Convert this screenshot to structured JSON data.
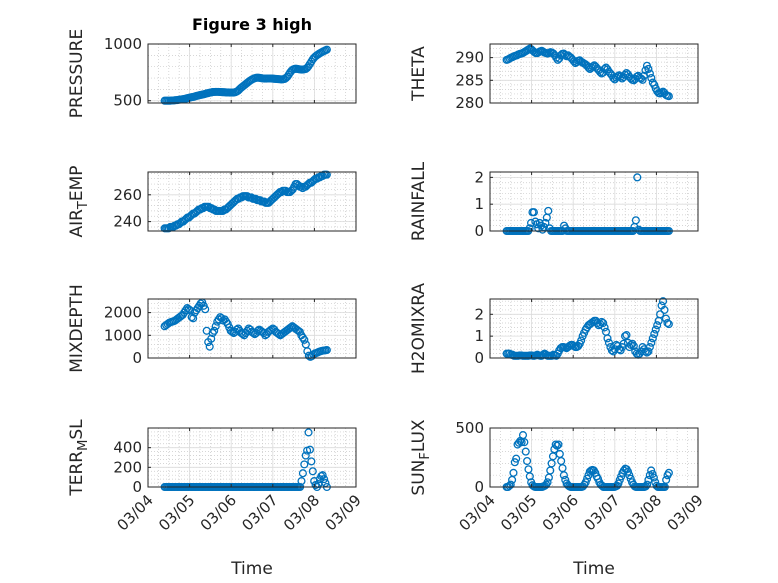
{
  "figure_title": "Figure 3 high",
  "marker_color": "#0072BD",
  "x_axis": {
    "label": "Time",
    "ticks": [
      "03/04",
      "03/05",
      "03/06",
      "03/07",
      "03/08",
      "03/09"
    ]
  },
  "chart_data": [
    {
      "type": "scatter",
      "title": "Figure 3 high",
      "ylabel": "PRESSURE",
      "ylim": [
        480,
        1000
      ],
      "yticks": [
        500,
        1000
      ],
      "grid": true,
      "series": [
        {
          "values": [
            500,
            500,
            500,
            500,
            500,
            502,
            502,
            504,
            505,
            506,
            508,
            510,
            512,
            514,
            516,
            518,
            522,
            525,
            528,
            531,
            533,
            536,
            540,
            543,
            546,
            550,
            552,
            555,
            558,
            561,
            565,
            568,
            571,
            573,
            576,
            577,
            578,
            578,
            578,
            577,
            576,
            575,
            575,
            574,
            573,
            573,
            572,
            572,
            572,
            572,
            575,
            580,
            588,
            600,
            612,
            622,
            632,
            642,
            652,
            662,
            672,
            680,
            688,
            694,
            699,
            702,
            703,
            702,
            700,
            698,
            696,
            695,
            695,
            696,
            696,
            696,
            695,
            694,
            693,
            692,
            691,
            690,
            689,
            688,
            690,
            692,
            700,
            712,
            730,
            750,
            765,
            775,
            780,
            782,
            780,
            778,
            776,
            775,
            775,
            777,
            780,
            790,
            805,
            825,
            845,
            865,
            880,
            892,
            902,
            910,
            918,
            925,
            932,
            938,
            944,
            950
          ]
        }
      ]
    },
    {
      "type": "scatter",
      "title": "",
      "ylabel": "THETA",
      "ylim": [
        280,
        293
      ],
      "yticks": [
        280,
        285,
        290
      ],
      "grid": true,
      "series": [
        {
          "values": [
            289.5,
            289.6,
            289.8,
            290,
            290.1,
            290.3,
            290.4,
            290.5,
            290.7,
            290.8,
            290.9,
            291,
            291.2,
            291.4,
            291.6,
            291.8,
            292,
            291.8,
            291.5,
            291.2,
            291,
            291,
            291.2,
            291.4,
            291.5,
            291.3,
            291.1,
            291,
            290.9,
            291,
            291.2,
            291.1,
            290.9,
            290.5,
            290,
            289.5,
            289.8,
            290.5,
            290.8,
            290.9,
            290.6,
            290.3,
            290.5,
            290.2,
            290,
            289.6,
            289.2,
            288.8,
            289,
            289.3,
            289.4,
            289.1,
            288.9,
            288.7,
            288.5,
            288.2,
            287.8,
            287.5,
            287.8,
            288.1,
            288.3,
            288,
            287.6,
            287.2,
            286.8,
            286.5,
            286.7,
            287.5,
            287.8,
            287.4,
            286.9,
            286.5,
            286.1,
            285.5,
            285.2,
            285.6,
            285.9,
            286.1,
            285.8,
            285.4,
            285.7,
            286.2,
            286.6,
            286.3,
            285.8,
            285.4,
            285.1,
            285,
            285.3,
            285.8,
            286,
            285.6,
            285.4,
            285.1,
            286,
            287.2,
            288.2,
            287.5,
            286.5,
            285.5,
            284.5,
            284,
            283.2,
            282.6,
            282.2,
            282.1,
            282.3,
            282.5,
            282.2,
            281.8,
            281.6,
            281.5
          ]
        }
      ]
    },
    {
      "type": "scatter",
      "title": "",
      "ylabel": "AIR_TEMP",
      "ylim": [
        233,
        277
      ],
      "yticks": [
        240,
        260
      ],
      "grid": true,
      "series": [
        {
          "values": [
            235,
            235,
            235,
            235,
            236,
            236,
            236,
            237,
            237,
            238,
            238,
            239,
            240,
            240,
            241,
            242,
            243,
            243,
            244,
            245,
            246,
            246,
            247,
            248,
            249,
            249,
            250,
            250,
            251,
            251,
            251,
            251,
            250,
            250,
            249,
            249,
            248,
            248,
            248,
            248,
            248,
            248,
            249,
            249,
            250,
            251,
            252,
            253,
            254,
            255,
            256,
            257,
            257,
            258,
            258,
            259,
            259,
            259,
            259,
            258,
            258,
            258,
            257,
            257,
            257,
            256,
            256,
            256,
            255,
            255,
            255,
            254,
            254,
            254,
            255,
            256,
            257,
            258,
            259,
            260,
            261,
            262,
            262,
            263,
            263,
            263,
            262,
            262,
            262,
            263,
            264,
            266,
            268,
            268,
            267,
            266,
            266,
            265,
            266,
            266,
            267,
            268,
            269,
            269,
            270,
            271,
            272,
            272,
            273,
            273,
            274,
            274,
            275,
            275,
            275
          ]
        }
      ]
    },
    {
      "type": "scatter",
      "title": "",
      "ylabel": "RAINFALL",
      "ylim": [
        0,
        2.2
      ],
      "yticks": [
        0,
        1,
        2
      ],
      "grid": true,
      "series": [
        {
          "values": [
            0,
            0,
            0,
            0,
            0,
            0,
            0,
            0,
            0,
            0,
            0,
            0,
            0,
            0,
            0,
            0,
            0.1,
            0.3,
            0.7,
            0.7,
            0.35,
            0.25,
            0.1,
            0.3,
            0.2,
            0.05,
            0.15,
            0.3,
            0.5,
            0.75,
            0.1,
            0,
            0,
            0,
            0,
            0,
            0,
            0,
            0,
            0,
            0.2,
            0.1,
            0,
            0,
            0,
            0,
            0,
            0,
            0,
            0,
            0,
            0,
            0,
            0,
            0,
            0,
            0,
            0,
            0,
            0,
            0,
            0,
            0,
            0,
            0,
            0,
            0,
            0,
            0,
            0,
            0,
            0,
            0,
            0,
            0,
            0,
            0,
            0,
            0,
            0,
            0,
            0,
            0,
            0,
            0,
            0,
            0,
            0,
            0,
            0.15,
            0.4,
            2.0,
            0.05,
            0,
            0,
            0,
            0,
            0,
            0,
            0,
            0,
            0,
            0,
            0,
            0,
            0,
            0,
            0,
            0,
            0,
            0,
            0,
            0,
            0
          ]
        }
      ]
    },
    {
      "type": "scatter",
      "title": "",
      "ylabel": "MIXDEPTH",
      "ylim": [
        0,
        2600
      ],
      "yticks": [
        0,
        1000,
        2000
      ],
      "grid": true,
      "series": [
        {
          "values": [
            1400,
            1450,
            1500,
            1550,
            1580,
            1600,
            1620,
            1650,
            1700,
            1750,
            1800,
            1850,
            1900,
            2000,
            2100,
            2200,
            2150,
            2100,
            1800,
            1750,
            2000,
            2100,
            2200,
            2300,
            2400,
            2450,
            2300,
            2150,
            1200,
            700,
            500,
            850,
            1100,
            1200,
            1400,
            1600,
            1700,
            1800,
            1750,
            1650,
            1700,
            1600,
            1500,
            1350,
            1200,
            1150,
            1100,
            1150,
            1250,
            1300,
            1200,
            1100,
            1050,
            1000,
            1100,
            1200,
            1300,
            1250,
            1150,
            1100,
            1050,
            1100,
            1200,
            1250,
            1200,
            1150,
            1100,
            1000,
            1050,
            1150,
            1200,
            1250,
            1300,
            1250,
            1150,
            1100,
            1050,
            1000,
            1050,
            1100,
            1150,
            1200,
            1250,
            1300,
            1350,
            1400,
            1350,
            1300,
            1250,
            1200,
            1150,
            1000,
            900,
            800,
            600,
            300,
            100,
            50,
            80,
            150,
            200,
            220,
            250,
            280,
            300,
            320,
            330,
            340,
            350
          ]
        }
      ]
    },
    {
      "type": "scatter",
      "title": "",
      "ylabel": "H2OMIXRA",
      "ylim": [
        0,
        2.7
      ],
      "yticks": [
        0,
        1,
        2
      ],
      "grid": true,
      "series": [
        {
          "values": [
            0.2,
            0.2,
            0.2,
            0.15,
            0.15,
            0.1,
            0.1,
            0.1,
            0.1,
            0.12,
            0.12,
            0.1,
            0.1,
            0.1,
            0.1,
            0.1,
            0.12,
            0.12,
            0.1,
            0.1,
            0.12,
            0.15,
            0.12,
            0.1,
            0.1,
            0.15,
            0.2,
            0.15,
            0.1,
            0.1,
            0.1,
            0.1,
            0.15,
            0.12,
            0.1,
            0.2,
            0.35,
            0.45,
            0.5,
            0.5,
            0.48,
            0.45,
            0.5,
            0.55,
            0.6,
            0.6,
            0.55,
            0.5,
            0.5,
            0.55,
            0.65,
            0.8,
            1.0,
            1.15,
            1.3,
            1.4,
            1.5,
            1.55,
            1.6,
            1.65,
            1.7,
            1.7,
            1.6,
            1.5,
            1.55,
            1.65,
            1.6,
            1.4,
            1.2,
            0.9,
            0.7,
            0.5,
            0.35,
            0.3,
            0.4,
            0.6,
            0.55,
            0.4,
            0.35,
            0.5,
            0.65,
            1.0,
            1.05,
            0.7,
            0.5,
            0.6,
            0.65,
            0.55,
            0.3,
            0.2,
            0.15,
            0.2,
            0.3,
            0.5,
            0.4,
            0.3,
            0.25,
            0.3,
            0.5,
            0.7,
            0.9,
            1.1,
            1.3,
            1.5,
            1.7,
            2.0,
            2.4,
            2.6,
            2.2,
            1.8,
            1.6,
            1.55
          ]
        }
      ]
    },
    {
      "type": "scatter",
      "title": "",
      "ylabel": "TERR_MSL",
      "ylim": [
        0,
        600
      ],
      "yticks": [
        0,
        200,
        400
      ],
      "grid": true,
      "series": [
        {
          "values": [
            0,
            0,
            0,
            0,
            0,
            0,
            0,
            0,
            0,
            0,
            0,
            0,
            0,
            0,
            0,
            0,
            0,
            0,
            0,
            0,
            0,
            0,
            0,
            0,
            0,
            0,
            0,
            0,
            0,
            0,
            0,
            0,
            0,
            0,
            0,
            0,
            0,
            0,
            0,
            0,
            0,
            0,
            0,
            0,
            0,
            0,
            0,
            0,
            0,
            0,
            0,
            0,
            0,
            0,
            0,
            0,
            0,
            0,
            0,
            0,
            0,
            0,
            0,
            0,
            0,
            0,
            0,
            0,
            0,
            0,
            0,
            0,
            0,
            0,
            0,
            0,
            0,
            0,
            0,
            0,
            0,
            0,
            0,
            0,
            0,
            0,
            0,
            0,
            0,
            0,
            0,
            0,
            0,
            0,
            0,
            0,
            0,
            60,
            140,
            230,
            320,
            370,
            555,
            380,
            260,
            160,
            60,
            20,
            0,
            30,
            80,
            110,
            120,
            80,
            40,
            0
          ]
        }
      ]
    },
    {
      "type": "scatter",
      "title": "",
      "ylabel": "SUN_FLUX",
      "ylim": [
        0,
        500
      ],
      "yticks": [
        0,
        500
      ],
      "grid": true,
      "series": [
        {
          "values": [
            0,
            0,
            10,
            20,
            60,
            120,
            210,
            240,
            360,
            375,
            390,
            380,
            440,
            380,
            300,
            220,
            150,
            90,
            40,
            15,
            5,
            0,
            0,
            0,
            0,
            0,
            0,
            5,
            10,
            20,
            40,
            80,
            140,
            200,
            260,
            320,
            360,
            350,
            360,
            280,
            220,
            160,
            100,
            60,
            30,
            15,
            5,
            0,
            0,
            0,
            0,
            0,
            0,
            0,
            0,
            0,
            5,
            20,
            40,
            70,
            100,
            130,
            140,
            145,
            140,
            120,
            90,
            70,
            40,
            20,
            10,
            0,
            0,
            0,
            0,
            0,
            0,
            0,
            0,
            0,
            5,
            10,
            30,
            60,
            90,
            120,
            140,
            155,
            150,
            130,
            100,
            70,
            40,
            20,
            5,
            0,
            0,
            0,
            0,
            0,
            0,
            0,
            5,
            20,
            60,
            100,
            140,
            110,
            80,
            40,
            10,
            0,
            0,
            0,
            0,
            0,
            0,
            60,
            100,
            120
          ]
        }
      ]
    }
  ]
}
